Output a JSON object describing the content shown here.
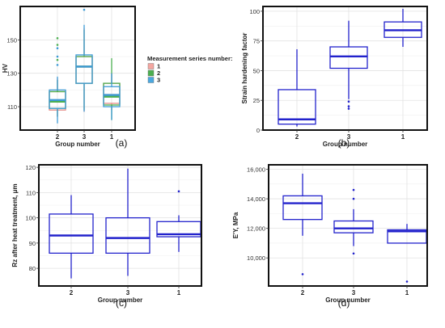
{
  "chart_data": [
    {
      "panel": "(a)",
      "type": "box",
      "xlabel": "Group number",
      "ylabel": "HV",
      "ylim": [
        96,
        170
      ],
      "yticks": [
        110,
        130,
        150
      ],
      "categories": [
        "2",
        "3",
        "1"
      ],
      "legend": {
        "title": "Measurement series number:",
        "position": "right",
        "entries": [
          {
            "label": "1",
            "color": "#f4a6a0"
          },
          {
            "label": "2",
            "color": "#4caf50"
          },
          {
            "label": "3",
            "color": "#4aa8e0"
          }
        ]
      },
      "series": [
        {
          "name": "1",
          "color": "#e58a84",
          "boxes": [
            {
              "category": "2",
              "min": 104,
              "q1": 108,
              "median": 113,
              "q3": 119,
              "max": 127,
              "outliers": []
            },
            {
              "category": "3",
              "min": 107,
              "q1": 124,
              "median": 134,
              "q3": 140,
              "max": 157,
              "outliers": []
            },
            {
              "category": "1",
              "min": 108,
              "q1": 112,
              "median": 117,
              "q3": 124,
              "max": 130,
              "outliers": []
            }
          ]
        },
        {
          "name": "2",
          "color": "#4caf50",
          "boxes": [
            {
              "category": "2",
              "min": 104,
              "q1": 109,
              "median": 113,
              "q3": 119,
              "max": 126,
              "outliers": [
                138,
                147,
                151
              ]
            },
            {
              "category": "3",
              "min": 108,
              "q1": 124,
              "median": 134,
              "q3": 140,
              "max": 156,
              "outliers": []
            },
            {
              "category": "1",
              "min": 102,
              "q1": 111,
              "median": 116,
              "q3": 124,
              "max": 139,
              "outliers": []
            }
          ]
        },
        {
          "name": "3",
          "color": "#3d9ad6",
          "boxes": [
            {
              "category": "2",
              "min": 100,
              "q1": 109,
              "median": 114,
              "q3": 120,
              "max": 128,
              "outliers": [
                135,
                140,
                145
              ]
            },
            {
              "category": "3",
              "min": 107,
              "q1": 124,
              "median": 134,
              "q3": 141,
              "max": 159,
              "outliers": [
                168
              ]
            },
            {
              "category": "1",
              "min": 102,
              "q1": 110,
              "median": 117,
              "q3": 122,
              "max": 130,
              "outliers": []
            }
          ]
        }
      ]
    },
    {
      "panel": "(b)",
      "type": "box",
      "xlabel": "Group number",
      "ylabel": "Strain hardening factor",
      "ylim": [
        0,
        104
      ],
      "yticks": [
        0,
        25,
        50,
        75,
        100
      ],
      "categories": [
        "2",
        "3",
        "1"
      ],
      "color": "#2222cc",
      "boxes": [
        {
          "category": "2",
          "min": 3,
          "q1": 5,
          "median": 9,
          "q3": 34,
          "max": 68,
          "outliers": []
        },
        {
          "category": "3",
          "min": 26,
          "q1": 52,
          "median": 62,
          "q3": 70,
          "max": 92,
          "outliers": [
            18,
            20,
            24
          ]
        },
        {
          "category": "1",
          "min": 70,
          "q1": 78,
          "median": 84,
          "q3": 91,
          "max": 102,
          "outliers": []
        }
      ]
    },
    {
      "panel": "(c)",
      "type": "box",
      "xlabel": "Group number",
      "ylabel": "Rz after heat treatment, μm",
      "ylim": [
        73,
        121
      ],
      "yticks": [
        80,
        90,
        100,
        110,
        120
      ],
      "categories": [
        "2",
        "3",
        "1"
      ],
      "color": "#2222cc",
      "boxes": [
        {
          "category": "2",
          "min": 76,
          "q1": 86,
          "median": 93,
          "q3": 101.5,
          "max": 109,
          "outliers": []
        },
        {
          "category": "3",
          "min": 77,
          "q1": 86,
          "median": 92,
          "q3": 100,
          "max": 119.5,
          "outliers": []
        },
        {
          "category": "1",
          "min": 86.5,
          "q1": 92.5,
          "median": 93.5,
          "q3": 98.5,
          "max": 101,
          "outliers": [
            110.5
          ]
        }
      ]
    },
    {
      "panel": "(d)",
      "type": "box",
      "xlabel": "Group number",
      "ylabel": "E'Y, MPa",
      "ylim": [
        8100,
        16300
      ],
      "yticks": [
        10000,
        12000,
        14000,
        16000
      ],
      "ytick_labels": [
        "10,000",
        "12,000",
        "14,000",
        "16,000"
      ],
      "categories": [
        "2",
        "3",
        "1"
      ],
      "color": "#2222cc",
      "boxes": [
        {
          "category": "2",
          "min": 11500,
          "q1": 12600,
          "median": 13700,
          "q3": 14200,
          "max": 15700,
          "outliers": [
            8900
          ]
        },
        {
          "category": "3",
          "min": 10800,
          "q1": 11700,
          "median": 12000,
          "q3": 12500,
          "max": 13300,
          "outliers": [
            10300,
            14000,
            14600
          ]
        },
        {
          "category": "1",
          "min": 11000,
          "q1": 11000,
          "median": 11800,
          "q3": 11900,
          "max": 12300,
          "outliers": [
            8400
          ]
        }
      ]
    }
  ]
}
